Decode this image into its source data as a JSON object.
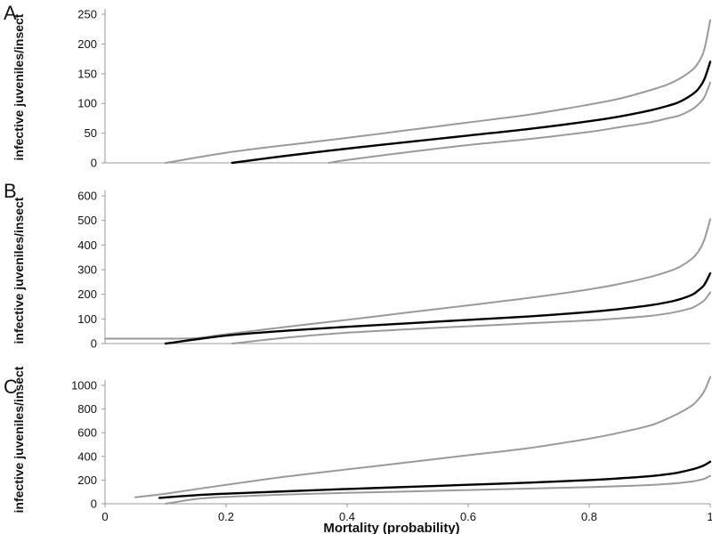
{
  "figure": {
    "xlabel": "Mortality (probability)",
    "ylabel": "infective juveniles/insect",
    "colors": {
      "upper": "#9a9a9a",
      "estimate": "#000000",
      "lower": "#9a9a9a"
    }
  },
  "chart_data": [
    {
      "type": "line",
      "panel": "A",
      "ylim": [
        0,
        250
      ],
      "yticks": [
        0,
        50,
        100,
        150,
        200,
        250
      ],
      "xlim": [
        0,
        1
      ],
      "series": [
        {
          "role": "upper",
          "x": [
            0.1,
            0.2,
            0.3,
            0.4,
            0.5,
            0.6,
            0.7,
            0.8,
            0.85,
            0.9,
            0.93,
            0.95,
            0.97,
            0.98,
            0.99,
            1.0
          ],
          "y": [
            0,
            17,
            30,
            42,
            55,
            68,
            81,
            98,
            108,
            122,
            132,
            142,
            156,
            168,
            190,
            240
          ]
        },
        {
          "role": "estimate",
          "x": [
            0.21,
            0.3,
            0.4,
            0.5,
            0.6,
            0.7,
            0.8,
            0.85,
            0.9,
            0.93,
            0.95,
            0.97,
            0.98,
            0.99,
            1.0
          ],
          "y": [
            0,
            12,
            24,
            35,
            46,
            57,
            70,
            78,
            88,
            96,
            103,
            115,
            124,
            140,
            170
          ]
        },
        {
          "role": "lower",
          "x": [
            0.37,
            0.4,
            0.5,
            0.6,
            0.7,
            0.8,
            0.85,
            0.9,
            0.93,
            0.95,
            0.97,
            0.98,
            0.99,
            1.0
          ],
          "y": [
            0,
            5,
            18,
            30,
            40,
            52,
            60,
            68,
            75,
            80,
            90,
            98,
            110,
            135
          ]
        }
      ]
    },
    {
      "type": "line",
      "panel": "B",
      "ylim": [
        0,
        600
      ],
      "yticks": [
        0,
        100,
        200,
        300,
        400,
        500,
        600
      ],
      "xlim": [
        0,
        1
      ],
      "series": [
        {
          "role": "upper",
          "x": [
            0.0,
            0.05,
            0.1,
            0.15,
            0.2,
            0.3,
            0.4,
            0.5,
            0.6,
            0.7,
            0.8,
            0.85,
            0.9,
            0.93,
            0.95,
            0.97,
            0.98,
            0.99,
            1.0
          ],
          "y": [
            20,
            20,
            20,
            22,
            38,
            68,
            96,
            126,
            155,
            185,
            220,
            242,
            270,
            292,
            312,
            345,
            372,
            420,
            505
          ]
        },
        {
          "role": "estimate",
          "x": [
            0.1,
            0.2,
            0.3,
            0.4,
            0.5,
            0.6,
            0.7,
            0.8,
            0.85,
            0.9,
            0.93,
            0.95,
            0.97,
            0.98,
            0.99,
            1.0
          ],
          "y": [
            0,
            32,
            52,
            68,
            82,
            96,
            110,
            128,
            140,
            155,
            168,
            180,
            198,
            215,
            238,
            285
          ]
        },
        {
          "role": "lower",
          "x": [
            0.21,
            0.3,
            0.4,
            0.5,
            0.6,
            0.7,
            0.8,
            0.85,
            0.9,
            0.93,
            0.95,
            0.97,
            0.98,
            0.99,
            1.0
          ],
          "y": [
            0,
            24,
            44,
            58,
            70,
            82,
            94,
            102,
            112,
            122,
            132,
            145,
            158,
            175,
            208
          ]
        }
      ]
    },
    {
      "type": "line",
      "panel": "C",
      "ylim": [
        0,
        1000
      ],
      "yticks": [
        0,
        200,
        400,
        600,
        800,
        1000
      ],
      "xlim": [
        0,
        1
      ],
      "xticks": [
        0,
        0.2,
        0.4,
        0.6,
        0.8,
        1
      ],
      "xticklabels": [
        "0",
        "0.2",
        "0.4",
        "0.6",
        "0.8",
        "1"
      ],
      "series": [
        {
          "role": "upper",
          "x": [
            0.05,
            0.1,
            0.2,
            0.3,
            0.4,
            0.5,
            0.6,
            0.7,
            0.8,
            0.85,
            0.9,
            0.93,
            0.95,
            0.97,
            0.98,
            0.99,
            1.0
          ],
          "y": [
            55,
            85,
            160,
            230,
            290,
            350,
            410,
            470,
            550,
            600,
            660,
            720,
            770,
            830,
            880,
            950,
            1070
          ]
        },
        {
          "role": "estimate",
          "x": [
            0.09,
            0.15,
            0.2,
            0.3,
            0.4,
            0.5,
            0.6,
            0.7,
            0.8,
            0.85,
            0.9,
            0.93,
            0.95,
            0.97,
            0.98,
            0.99,
            1.0
          ],
          "y": [
            50,
            72,
            85,
            105,
            125,
            142,
            160,
            178,
            200,
            214,
            232,
            250,
            266,
            290,
            305,
            325,
            355
          ]
        },
        {
          "role": "lower",
          "x": [
            0.1,
            0.15,
            0.2,
            0.3,
            0.4,
            0.5,
            0.6,
            0.7,
            0.8,
            0.85,
            0.9,
            0.93,
            0.95,
            0.97,
            0.98,
            0.99,
            1.0
          ],
          "y": [
            0,
            40,
            58,
            78,
            92,
            104,
            116,
            128,
            140,
            148,
            158,
            168,
            176,
            188,
            198,
            210,
            235
          ]
        }
      ]
    }
  ]
}
